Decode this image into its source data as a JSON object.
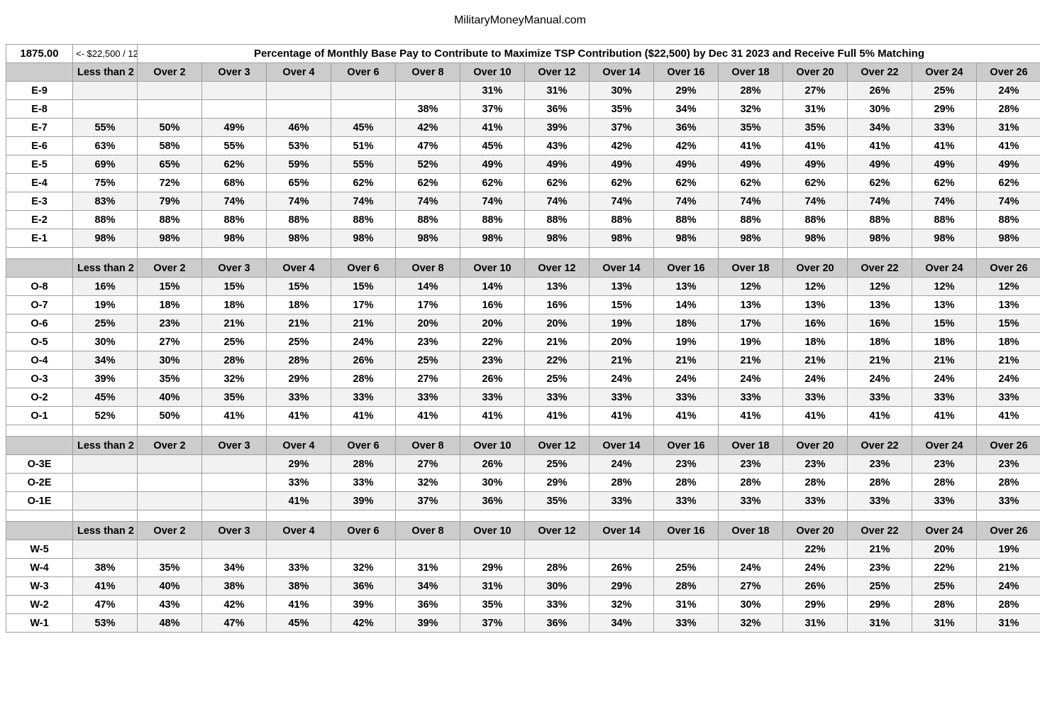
{
  "site_title": "MilitaryMoneyManual.com",
  "table_title": "Percentage of Monthly Base Pay to Contribute to Maximize TSP Contribution ($22,500) by Dec 31 2023 and Receive Full 5% Matching",
  "input_value": "1875.00",
  "input_note": "<- $22,500 / 12",
  "headers": [
    "Less than 2",
    "Over 2",
    "Over 3",
    "Over 4",
    "Over 6",
    "Over 8",
    "Over 10",
    "Over 12",
    "Over 14",
    "Over 16",
    "Over 18",
    "Over 20",
    "Over 22",
    "Over 24",
    "Over 26"
  ],
  "sections": [
    {
      "rows": [
        {
          "grade": "E-9",
          "cells": [
            "",
            "",
            "",
            "",
            "",
            "",
            "31%",
            "31%",
            "30%",
            "29%",
            "28%",
            "27%",
            "26%",
            "25%",
            "24%"
          ]
        },
        {
          "grade": "E-8",
          "cells": [
            "",
            "",
            "",
            "",
            "",
            "38%",
            "37%",
            "36%",
            "35%",
            "34%",
            "32%",
            "31%",
            "30%",
            "29%",
            "28%"
          ]
        },
        {
          "grade": "E-7",
          "cells": [
            "55%",
            "50%",
            "49%",
            "46%",
            "45%",
            "42%",
            "41%",
            "39%",
            "37%",
            "36%",
            "35%",
            "35%",
            "34%",
            "33%",
            "31%"
          ]
        },
        {
          "grade": "E-6",
          "cells": [
            "63%",
            "58%",
            "55%",
            "53%",
            "51%",
            "47%",
            "45%",
            "43%",
            "42%",
            "42%",
            "41%",
            "41%",
            "41%",
            "41%",
            "41%"
          ]
        },
        {
          "grade": "E-5",
          "cells": [
            "69%",
            "65%",
            "62%",
            "59%",
            "55%",
            "52%",
            "49%",
            "49%",
            "49%",
            "49%",
            "49%",
            "49%",
            "49%",
            "49%",
            "49%"
          ]
        },
        {
          "grade": "E-4",
          "cells": [
            "75%",
            "72%",
            "68%",
            "65%",
            "62%",
            "62%",
            "62%",
            "62%",
            "62%",
            "62%",
            "62%",
            "62%",
            "62%",
            "62%",
            "62%"
          ]
        },
        {
          "grade": "E-3",
          "cells": [
            "83%",
            "79%",
            "74%",
            "74%",
            "74%",
            "74%",
            "74%",
            "74%",
            "74%",
            "74%",
            "74%",
            "74%",
            "74%",
            "74%",
            "74%"
          ]
        },
        {
          "grade": "E-2",
          "cells": [
            "88%",
            "88%",
            "88%",
            "88%",
            "88%",
            "88%",
            "88%",
            "88%",
            "88%",
            "88%",
            "88%",
            "88%",
            "88%",
            "88%",
            "88%"
          ]
        },
        {
          "grade": "E-1",
          "cells": [
            "98%",
            "98%",
            "98%",
            "98%",
            "98%",
            "98%",
            "98%",
            "98%",
            "98%",
            "98%",
            "98%",
            "98%",
            "98%",
            "98%",
            "98%"
          ]
        }
      ]
    },
    {
      "rows": [
        {
          "grade": "O-8",
          "cells": [
            "16%",
            "15%",
            "15%",
            "15%",
            "15%",
            "14%",
            "14%",
            "13%",
            "13%",
            "13%",
            "12%",
            "12%",
            "12%",
            "12%",
            "12%"
          ]
        },
        {
          "grade": "O-7",
          "cells": [
            "19%",
            "18%",
            "18%",
            "18%",
            "17%",
            "17%",
            "16%",
            "16%",
            "15%",
            "14%",
            "13%",
            "13%",
            "13%",
            "13%",
            "13%"
          ]
        },
        {
          "grade": "O-6",
          "cells": [
            "25%",
            "23%",
            "21%",
            "21%",
            "21%",
            "20%",
            "20%",
            "20%",
            "19%",
            "18%",
            "17%",
            "16%",
            "16%",
            "15%",
            "15%"
          ]
        },
        {
          "grade": "O-5",
          "cells": [
            "30%",
            "27%",
            "25%",
            "25%",
            "24%",
            "23%",
            "22%",
            "21%",
            "20%",
            "19%",
            "19%",
            "18%",
            "18%",
            "18%",
            "18%"
          ]
        },
        {
          "grade": "O-4",
          "cells": [
            "34%",
            "30%",
            "28%",
            "28%",
            "26%",
            "25%",
            "23%",
            "22%",
            "21%",
            "21%",
            "21%",
            "21%",
            "21%",
            "21%",
            "21%"
          ]
        },
        {
          "grade": "O-3",
          "cells": [
            "39%",
            "35%",
            "32%",
            "29%",
            "28%",
            "27%",
            "26%",
            "25%",
            "24%",
            "24%",
            "24%",
            "24%",
            "24%",
            "24%",
            "24%"
          ]
        },
        {
          "grade": "O-2",
          "cells": [
            "45%",
            "40%",
            "35%",
            "33%",
            "33%",
            "33%",
            "33%",
            "33%",
            "33%",
            "33%",
            "33%",
            "33%",
            "33%",
            "33%",
            "33%"
          ]
        },
        {
          "grade": "O-1",
          "cells": [
            "52%",
            "50%",
            "41%",
            "41%",
            "41%",
            "41%",
            "41%",
            "41%",
            "41%",
            "41%",
            "41%",
            "41%",
            "41%",
            "41%",
            "41%"
          ]
        }
      ]
    },
    {
      "rows": [
        {
          "grade": "O-3E",
          "cells": [
            "",
            "",
            "",
            "29%",
            "28%",
            "27%",
            "26%",
            "25%",
            "24%",
            "23%",
            "23%",
            "23%",
            "23%",
            "23%",
            "23%"
          ]
        },
        {
          "grade": "O-2E",
          "cells": [
            "",
            "",
            "",
            "33%",
            "33%",
            "32%",
            "30%",
            "29%",
            "28%",
            "28%",
            "28%",
            "28%",
            "28%",
            "28%",
            "28%"
          ]
        },
        {
          "grade": "O-1E",
          "cells": [
            "",
            "",
            "",
            "41%",
            "39%",
            "37%",
            "36%",
            "35%",
            "33%",
            "33%",
            "33%",
            "33%",
            "33%",
            "33%",
            "33%"
          ]
        }
      ]
    },
    {
      "rows": [
        {
          "grade": "W-5",
          "cells": [
            "",
            "",
            "",
            "",
            "",
            "",
            "",
            "",
            "",
            "",
            "",
            "22%",
            "21%",
            "20%",
            "19%"
          ]
        },
        {
          "grade": "W-4",
          "cells": [
            "38%",
            "35%",
            "34%",
            "33%",
            "32%",
            "31%",
            "29%",
            "28%",
            "26%",
            "25%",
            "24%",
            "24%",
            "23%",
            "22%",
            "21%"
          ]
        },
        {
          "grade": "W-3",
          "cells": [
            "41%",
            "40%",
            "38%",
            "38%",
            "36%",
            "34%",
            "31%",
            "30%",
            "29%",
            "28%",
            "27%",
            "26%",
            "25%",
            "25%",
            "24%"
          ]
        },
        {
          "grade": "W-2",
          "cells": [
            "47%",
            "43%",
            "42%",
            "41%",
            "39%",
            "36%",
            "35%",
            "33%",
            "32%",
            "31%",
            "30%",
            "29%",
            "29%",
            "28%",
            "28%"
          ]
        },
        {
          "grade": "W-1",
          "cells": [
            "53%",
            "48%",
            "47%",
            "45%",
            "42%",
            "39%",
            "37%",
            "36%",
            "34%",
            "33%",
            "32%",
            "31%",
            "31%",
            "31%",
            "31%"
          ]
        }
      ]
    }
  ]
}
